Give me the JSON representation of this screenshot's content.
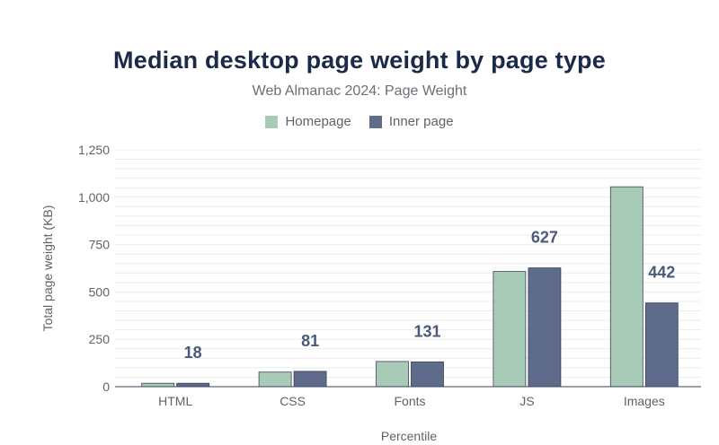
{
  "chart_data": {
    "type": "bar",
    "title": "Median desktop page weight by page type",
    "subtitle": "Web Almanac 2024: Page Weight",
    "xlabel": "Percentile",
    "ylabel": "Total page weight (KB)",
    "categories": [
      "HTML",
      "CSS",
      "Fonts",
      "JS",
      "Images"
    ],
    "series": [
      {
        "name": "Homepage",
        "color": "#a8cbb8",
        "values": [
          18,
          77,
          133,
          608,
          1055
        ]
      },
      {
        "name": "Inner page",
        "color": "#5e6b8a",
        "values": [
          18,
          81,
          131,
          627,
          442
        ]
      }
    ],
    "data_labels": [
      "18",
      "81",
      "131",
      "627",
      "442"
    ],
    "ylim": [
      0,
      1250
    ],
    "yticks": [
      "0",
      "250",
      "500",
      "750",
      "1,000",
      "1,250"
    ],
    "grid": true,
    "legend_position": "top-center"
  }
}
